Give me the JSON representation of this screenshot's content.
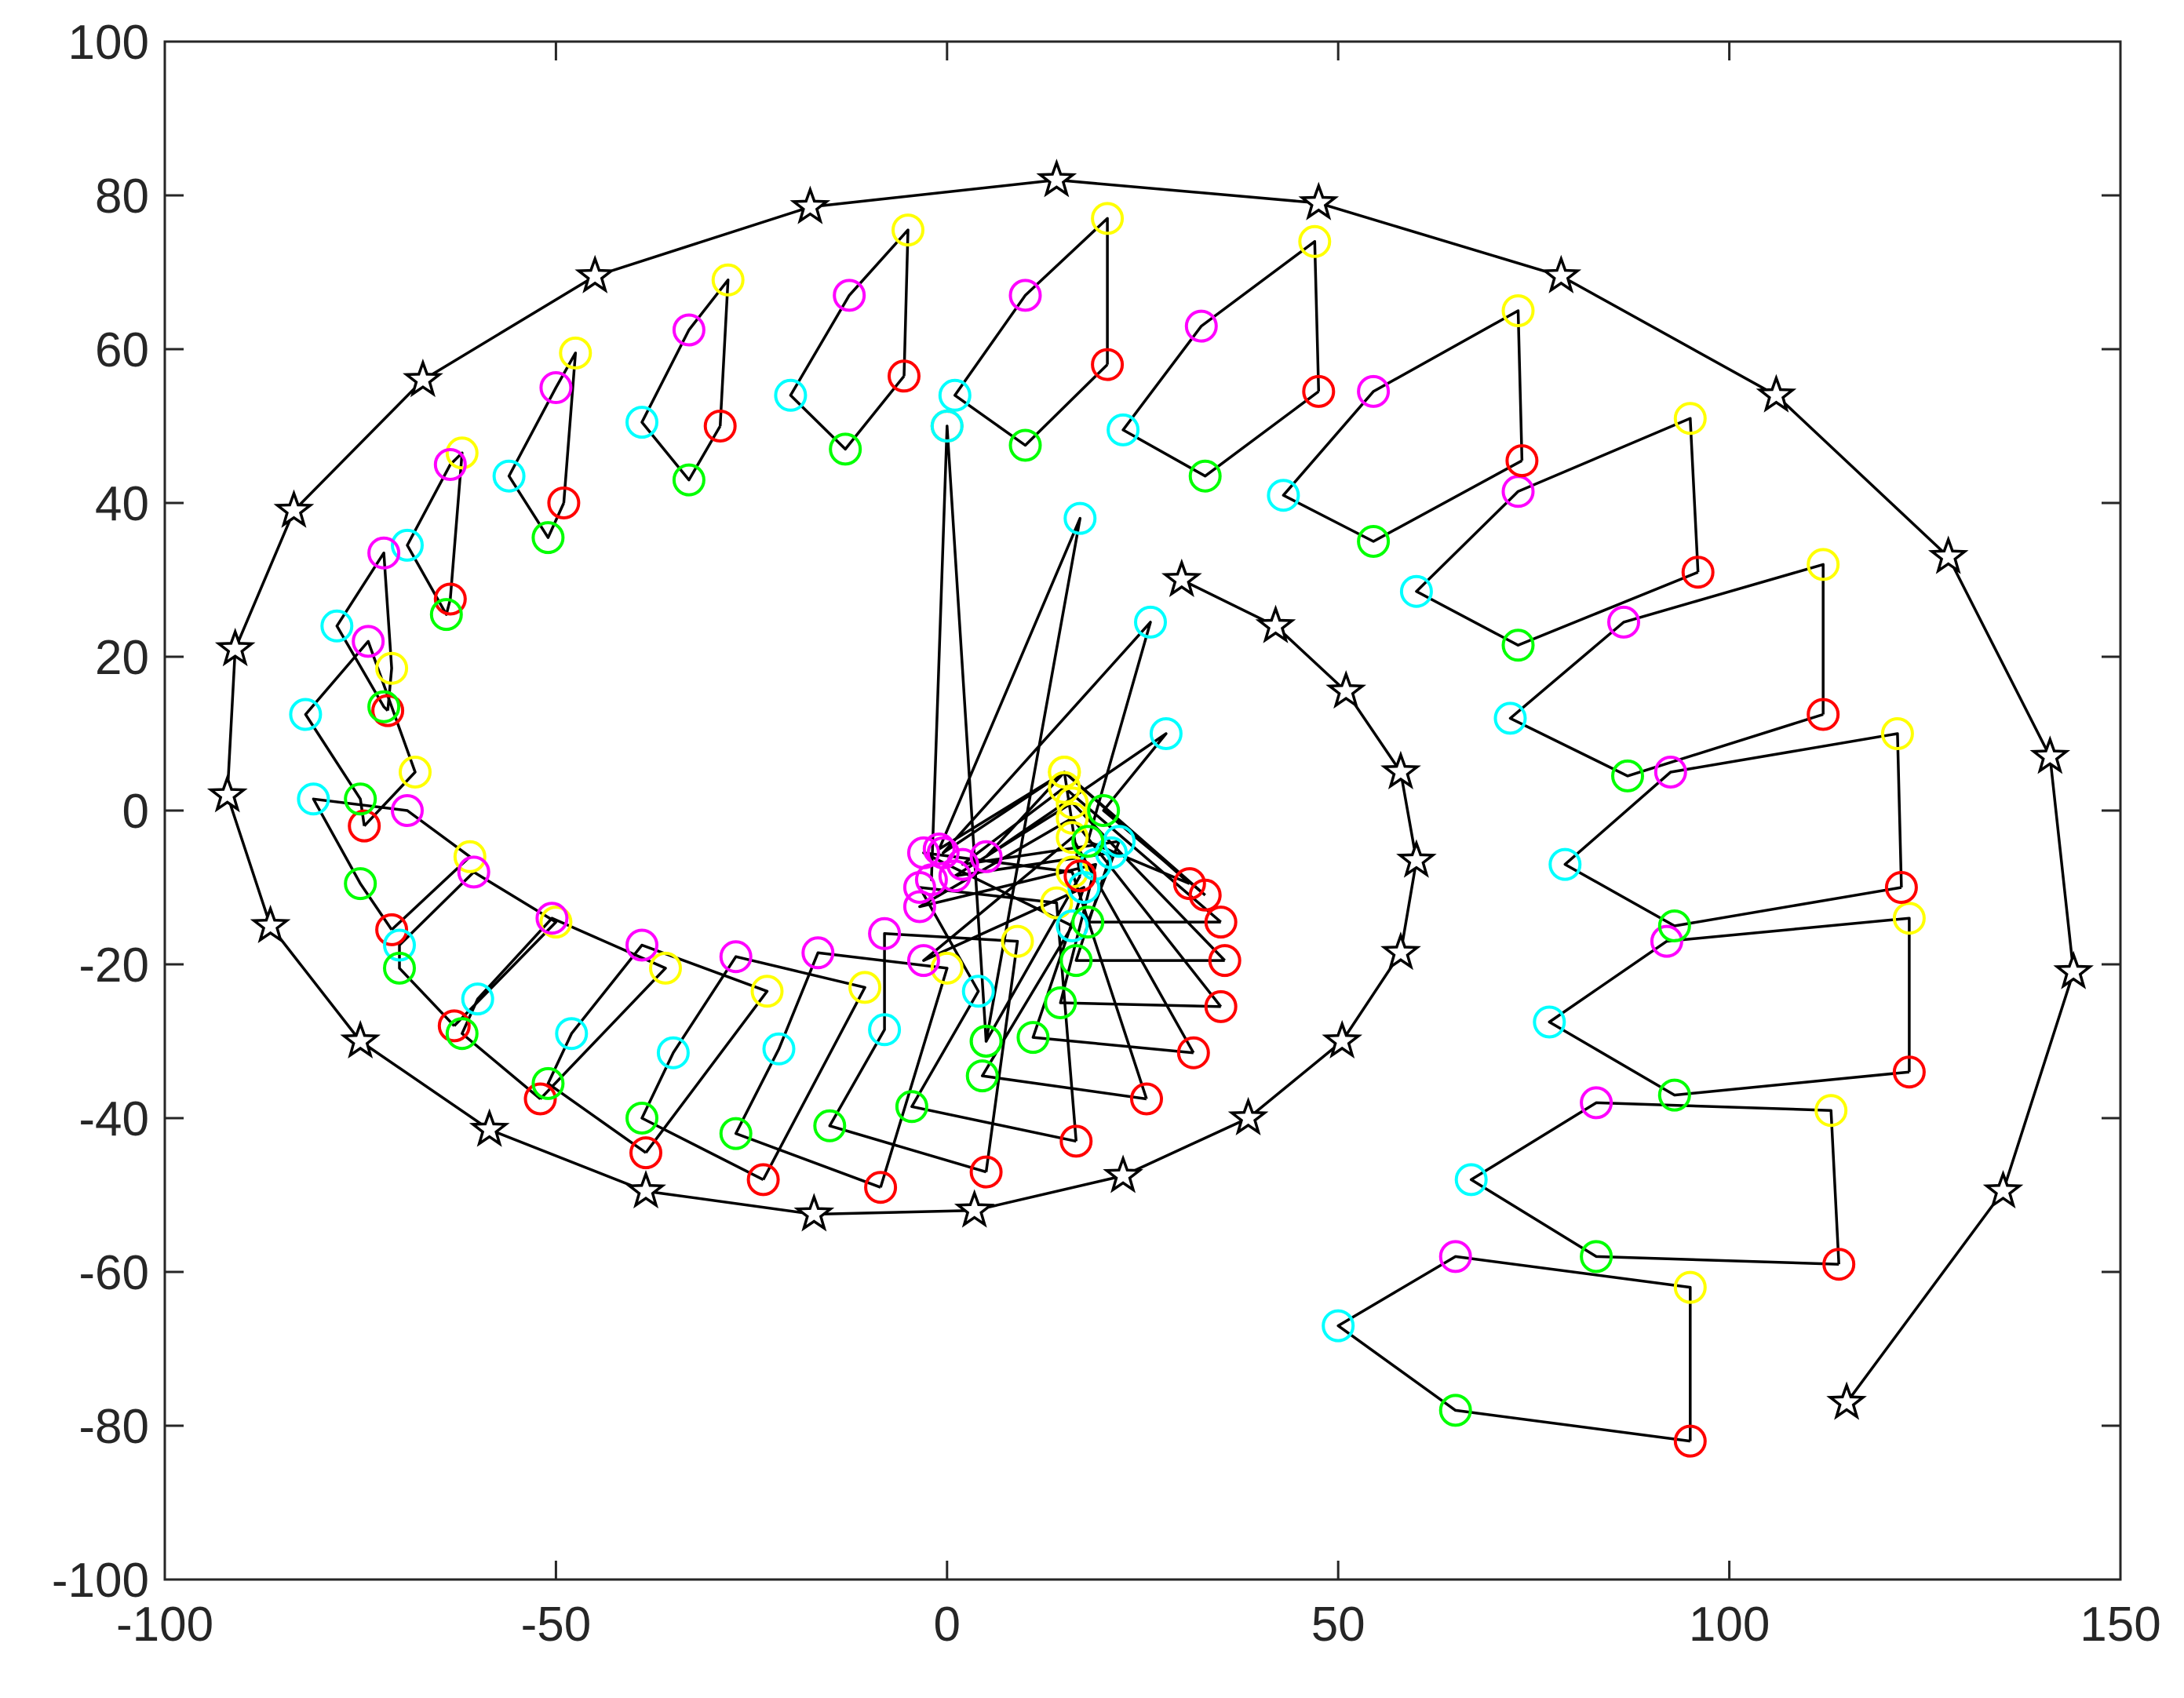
{
  "chart_data": {
    "type": "scatter",
    "title": "",
    "xlabel": "",
    "ylabel": "",
    "xlim": [
      -100,
      150
    ],
    "ylim": [
      -100,
      100
    ],
    "xticks": [
      "-100",
      "-50",
      "0",
      "50",
      "100",
      "150"
    ],
    "yticks": [
      "100",
      "80",
      "60",
      "40",
      "20",
      "0",
      "-20",
      "-40",
      "-60",
      "-80",
      "-100"
    ],
    "grid": false,
    "legend": "none",
    "colors": {
      "star_line": "#000000",
      "red": "#ff0000",
      "yellow": "#ffff00",
      "magenta": "#ff00ff",
      "cyan": "#00ffff",
      "green": "#00ff00"
    },
    "star_path": [
      [
        30,
        30
      ],
      [
        42,
        24
      ],
      [
        51,
        15.5
      ],
      [
        58,
        5
      ],
      [
        60,
        -6.5
      ],
      [
        58,
        -18.5
      ],
      [
        50.5,
        -30
      ],
      [
        38.5,
        -40
      ],
      [
        22.5,
        -47.5
      ],
      [
        3.5,
        -52
      ],
      [
        -17,
        -52.5
      ],
      [
        -38.5,
        -49.5
      ],
      [
        -58.5,
        -41.5
      ],
      [
        -75,
        -30
      ],
      [
        -86.5,
        -15
      ],
      [
        -92,
        2
      ],
      [
        -91,
        21
      ],
      [
        -83.5,
        39
      ],
      [
        -67,
        56
      ],
      [
        -45,
        69.5
      ],
      [
        -17.5,
        78.5
      ],
      [
        14,
        82
      ],
      [
        47.5,
        79
      ],
      [
        78.5,
        69.5
      ],
      [
        106,
        54
      ],
      [
        128,
        33
      ],
      [
        141,
        7
      ],
      [
        144,
        -21
      ],
      [
        135,
        -49.5
      ],
      [
        115,
        -77
      ]
    ],
    "groups": [
      {
        "red": [
          95,
          -82
        ],
        "yellow": [
          95,
          -62
        ],
        "magenta": [
          65,
          -58
        ],
        "cyan": [
          50,
          -67
        ],
        "green": [
          65,
          -78
        ]
      },
      {
        "red": [
          114,
          -59
        ],
        "yellow": [
          113,
          -39
        ],
        "magenta": [
          83,
          -38
        ],
        "cyan": [
          67,
          -48
        ],
        "green": [
          83,
          -58
        ]
      },
      {
        "red": [
          123,
          -34
        ],
        "yellow": [
          123,
          -14
        ],
        "magenta": [
          92,
          -17
        ],
        "cyan": [
          77,
          -27.5
        ],
        "green": [
          93,
          -37
        ]
      },
      {
        "red": [
          122,
          -10
        ],
        "yellow": [
          121.5,
          10
        ],
        "magenta": [
          92.5,
          5
        ],
        "cyan": [
          79,
          -7
        ],
        "green": [
          93,
          -15
        ]
      },
      {
        "red": [
          112,
          12.5
        ],
        "yellow": [
          112,
          32
        ],
        "magenta": [
          86.5,
          24.5
        ],
        "cyan": [
          72,
          12
        ],
        "green": [
          87,
          4.5
        ]
      },
      {
        "red": [
          96,
          31
        ],
        "yellow": [
          95,
          51
        ],
        "magenta": [
          73,
          41.5
        ],
        "cyan": [
          60,
          28.5
        ],
        "green": [
          73,
          21.5
        ]
      },
      {
        "red": [
          73.5,
          45.5
        ],
        "yellow": [
          73,
          65
        ],
        "magenta": [
          54.5,
          54.5
        ],
        "cyan": [
          43,
          41
        ],
        "green": [
          54.5,
          35
        ]
      },
      {
        "red": [
          47.5,
          54.5
        ],
        "yellow": [
          47,
          74
        ],
        "magenta": [
          32.5,
          63
        ],
        "cyan": [
          22.5,
          49.5
        ],
        "green": [
          33,
          43.5
        ]
      },
      {
        "red": [
          20.5,
          58
        ],
        "yellow": [
          20.5,
          77
        ],
        "magenta": [
          10,
          67
        ],
        "cyan": [
          1,
          54
        ],
        "green": [
          10,
          47.5
        ]
      },
      {
        "red": [
          -5.5,
          56.5
        ],
        "yellow": [
          -5,
          75.5
        ],
        "magenta": [
          -12.5,
          67
        ],
        "cyan": [
          -20,
          54
        ],
        "green": [
          -13,
          47
        ]
      },
      {
        "red": [
          -29,
          50
        ],
        "yellow": [
          -28,
          69
        ],
        "magenta": [
          -33,
          62.5
        ],
        "cyan": [
          -39,
          50.5
        ],
        "green": [
          -33,
          43
        ]
      },
      {
        "red": [
          -49,
          40
        ],
        "yellow": [
          -47.5,
          59.5
        ],
        "magenta": [
          -50,
          55
        ],
        "cyan": [
          -56,
          43.5
        ],
        "green": [
          -51,
          35.5
        ]
      },
      {
        "red": [
          -63.5,
          27.5
        ],
        "yellow": [
          -62,
          46.5
        ],
        "magenta": [
          -63.5,
          45
        ],
        "cyan": [
          -69,
          34.5
        ],
        "green": [
          -64,
          25.5
        ]
      },
      {
        "red": [
          -71.5,
          13
        ],
        "yellow": [
          -71,
          18.5
        ],
        "magenta": [
          -72,
          33.5
        ],
        "cyan": [
          -78,
          24
        ],
        "green": [
          -72,
          13.5
        ]
      },
      {
        "red": [
          -74.5,
          -2
        ],
        "yellow": [
          -68,
          5
        ],
        "magenta": [
          -74,
          22
        ],
        "cyan": [
          -82,
          12.5
        ],
        "green": [
          -75,
          1.5
        ]
      },
      {
        "red": [
          -71,
          -15.5
        ],
        "yellow": [
          -61,
          -6
        ],
        "magenta": [
          -69,
          0
        ],
        "cyan": [
          -81,
          1.5
        ],
        "green": [
          -75,
          -9.5
        ]
      },
      {
        "red": [
          -63,
          -28
        ],
        "yellow": [
          -50,
          -14.5
        ],
        "magenta": [
          -60.5,
          -8
        ],
        "cyan": [
          -70,
          -17.5
        ],
        "green": [
          -70,
          -20.5
        ]
      },
      {
        "red": [
          -52,
          -37.5
        ],
        "yellow": [
          -36,
          -20.5
        ],
        "magenta": [
          -50.5,
          -14
        ],
        "cyan": [
          -60,
          -24.5
        ],
        "green": [
          -62,
          -29
        ]
      },
      {
        "red": [
          -38.5,
          -44.5
        ],
        "yellow": [
          -23,
          -23.5
        ],
        "magenta": [
          -39,
          -17.5
        ],
        "cyan": [
          -48,
          -29
        ],
        "green": [
          -51,
          -35.5
        ]
      },
      {
        "red": [
          -23.5,
          -48
        ],
        "yellow": [
          -10.5,
          -23
        ],
        "magenta": [
          -27,
          -19
        ],
        "cyan": [
          -35,
          -31.5
        ],
        "green": [
          -39,
          -40
        ]
      },
      {
        "red": [
          -8.5,
          -49
        ],
        "yellow": [
          0,
          -20.5
        ],
        "magenta": [
          -16.5,
          -18.5
        ],
        "cyan": [
          -21.5,
          -31
        ],
        "green": [
          -27,
          -42
        ]
      },
      {
        "red": [
          5,
          -47
        ],
        "yellow": [
          9,
          -17
        ],
        "magenta": [
          -8,
          -16
        ],
        "cyan": [
          -8,
          -28.5
        ],
        "green": [
          -15,
          -41
        ]
      },
      {
        "red": [
          16.5,
          -43
        ],
        "yellow": [
          14,
          -12
        ],
        "magenta": [
          -3.5,
          -10
        ],
        "cyan": [
          4,
          -23.5
        ],
        "green": [
          -4.5,
          -38.5
        ]
      },
      {
        "red": [
          25.5,
          -37.5
        ],
        "yellow": [
          16,
          -8
        ],
        "magenta": [
          -3,
          -5.5
        ],
        "cyan": [
          16,
          -15
        ],
        "green": [
          4.5,
          -34.5
        ]
      },
      {
        "red": [
          31.5,
          -31.5
        ],
        "yellow": [
          16,
          -3.5
        ],
        "magenta": [
          -3,
          -19.5
        ],
        "cyan": [
          17.5,
          -10
        ],
        "green": [
          11,
          -29.5
        ]
      },
      {
        "red": [
          35,
          -25.5
        ],
        "yellow": [
          16,
          -1
        ],
        "magenta": [
          -3.5,
          -12.5
        ],
        "cyan": [
          19,
          -7
        ],
        "green": [
          14.5,
          -25
        ]
      },
      {
        "red": [
          35.5,
          -19.5
        ],
        "yellow": [
          16,
          1
        ],
        "magenta": [
          1,
          -8.5
        ],
        "cyan": [
          21,
          -5.5
        ],
        "green": [
          16.5,
          -19.5
        ]
      },
      {
        "red": [
          35,
          -14.5
        ],
        "yellow": [
          15,
          3
        ],
        "magenta": [
          2,
          -7
        ],
        "cyan": [
          22,
          -4
        ],
        "green": [
          18,
          -14.5
        ]
      },
      {
        "red": [
          33,
          -11
        ],
        "yellow": [
          15,
          5
        ],
        "magenta": [
          5,
          -6
        ],
        "cyan": [
          28,
          10
        ],
        "green": [
          20,
          0
        ]
      },
      {
        "red": [
          31,
          -9.5
        ],
        "yellow": [
          15,
          5
        ],
        "magenta": [
          -0.5,
          -5.5
        ],
        "cyan": [
          26,
          24.5
        ],
        "green": [
          18,
          -4
        ]
      },
      {
        "red": [
          17,
          -8.5
        ],
        "yellow": [
          15,
          5
        ],
        "magenta": [
          -1,
          -5
        ],
        "cyan": [
          17,
          38
        ],
        "green": [
          5,
          -30
        ]
      },
      {
        "red": [
          0,
          50
        ],
        "yellow": [
          0,
          50
        ],
        "magenta": [
          -2,
          -9
        ],
        "cyan": [
          0,
          50
        ],
        "green": [
          5,
          -30
        ]
      }
    ]
  }
}
